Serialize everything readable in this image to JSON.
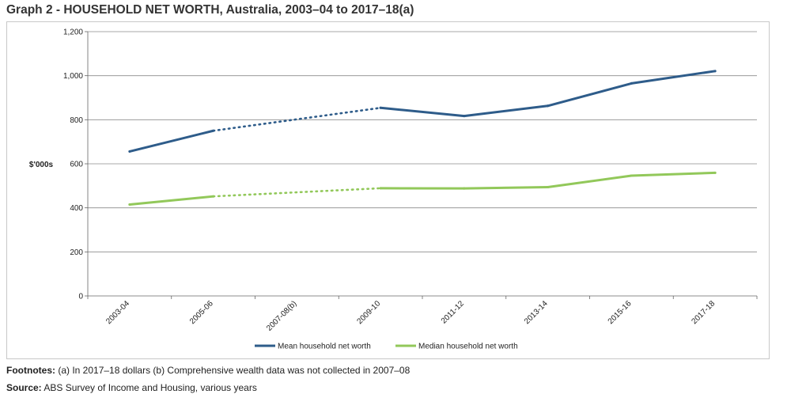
{
  "title": "Graph 2 - HOUSEHOLD NET WORTH, Australia, 2003–04 to 2017–18(a)",
  "footnotes": {
    "label": "Footnotes:",
    "text": " (a) In 2017–18 dollars (b) Comprehensive wealth data was not collected in 2007–08"
  },
  "source": {
    "label": "Source:",
    "text": " ABS Survey of Income and Housing, various years"
  },
  "chart_data": {
    "type": "line",
    "ylabel": "$'000s",
    "ylim": [
      0,
      1200
    ],
    "yticks": [
      0,
      200,
      400,
      600,
      800,
      1000,
      1200
    ],
    "ytick_labels": [
      "0",
      "200",
      "400",
      "600",
      "800",
      "1,000",
      "1,200"
    ],
    "categories": [
      "2003-04",
      "2005-06",
      "2007-08(b)",
      "2009-10",
      "2011-12",
      "2013-14",
      "2015-16",
      "2017-18"
    ],
    "grid": true,
    "legend_position": "bottom",
    "interpolated_segments_note": "dotted between 2005-06 and 2009-10",
    "series": [
      {
        "name": "Mean household net worth",
        "color": "#2e5c8a",
        "values": [
          656,
          750,
          null,
          854,
          817,
          863,
          965,
          1021
        ]
      },
      {
        "name": "Median household net worth",
        "color": "#92c85a",
        "values": [
          415,
          452,
          null,
          489,
          488,
          494,
          546,
          559
        ]
      }
    ]
  }
}
